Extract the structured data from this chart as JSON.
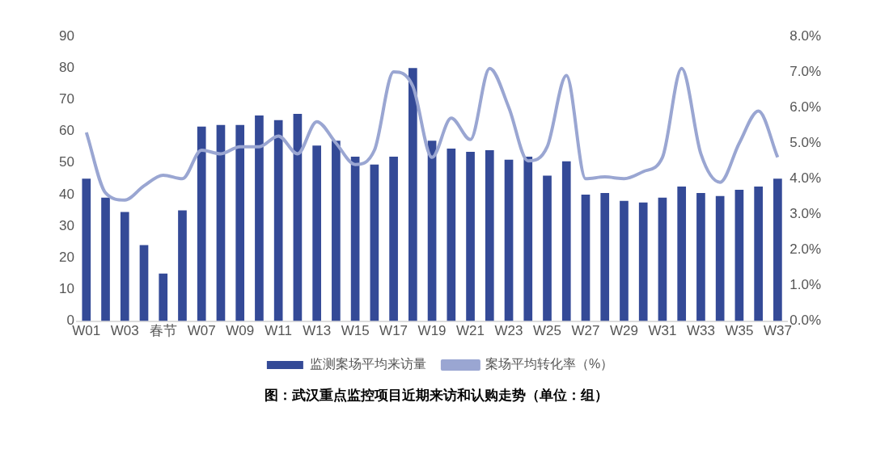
{
  "chart_data": {
    "type": "bar",
    "title": "图：武汉重点监控项目近期来访和认购走势（单位：组）",
    "categories": [
      "W01",
      null,
      "W03",
      null,
      "春节",
      null,
      "W07",
      null,
      "W09",
      null,
      "W11",
      null,
      "W13",
      null,
      "W15",
      null,
      "W17",
      null,
      "W19",
      null,
      "W21",
      null,
      "W23",
      null,
      "W25",
      null,
      "W27",
      null,
      "W29",
      null,
      "W31",
      null,
      "W33",
      null,
      "W35",
      null,
      "W37"
    ],
    "series": [
      {
        "name": "监测案场平均来访量",
        "color": "#344a97",
        "values": [
          45,
          39,
          34.5,
          24,
          15,
          35,
          61.5,
          62,
          62,
          65,
          63.5,
          65.5,
          55.5,
          57,
          52,
          49.5,
          52,
          80,
          57,
          54.5,
          53.5,
          54,
          51,
          52,
          46,
          50.5,
          40,
          40.5,
          38,
          37.5,
          39,
          42.5,
          40.5,
          39.5,
          41.5,
          42.5,
          45
        ]
      },
      {
        "name": "案场平均转化率（%）",
        "type": "line",
        "axis": "y2",
        "color": "#9aa6d2",
        "values": [
          5.3,
          3.6,
          3.4,
          3.8,
          4.1,
          4.0,
          4.8,
          4.7,
          4.9,
          4.9,
          5.2,
          4.7,
          5.6,
          5.0,
          4.4,
          4.8,
          7.0,
          6.6,
          4.6,
          5.7,
          5.1,
          7.1,
          6.0,
          4.5,
          4.9,
          6.9,
          4.0,
          4.05,
          4.0,
          4.2,
          4.6,
          7.1,
          4.7,
          3.9,
          5.0,
          5.9,
          4.6
        ]
      }
    ],
    "ylim": [
      0,
      90
    ],
    "yticks": [
      0,
      10,
      20,
      30,
      40,
      50,
      60,
      70,
      80,
      90
    ],
    "y2lim": [
      0,
      8
    ],
    "y2ticks": [
      {
        "value": 0,
        "label": "0.0%"
      },
      {
        "value": 1,
        "label": "1.0%"
      },
      {
        "value": 2,
        "label": "2.0%"
      },
      {
        "value": 3,
        "label": "3.0%"
      },
      {
        "value": 4,
        "label": "4.0%"
      },
      {
        "value": 5,
        "label": "5.0%"
      },
      {
        "value": 6,
        "label": "6.0%"
      },
      {
        "value": 7,
        "label": "7.0%"
      },
      {
        "value": 8,
        "label": "8.0%"
      }
    ],
    "grid": false,
    "legend": "bottom",
    "marker": "none"
  }
}
